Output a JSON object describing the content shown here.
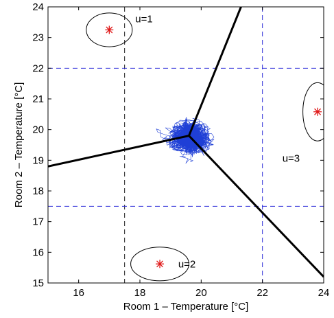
{
  "chart_data": {
    "type": "scatter",
    "title": "",
    "xlabel": "Room 1 – Temperature [°C]",
    "ylabel": "Room 2 – Temperature [°C]",
    "xlim": [
      15,
      24
    ],
    "ylim": [
      15,
      24
    ],
    "xticks": [
      16,
      18,
      20,
      22,
      24
    ],
    "yticks": [
      15,
      16,
      17,
      18,
      19,
      20,
      21,
      22,
      23,
      24
    ],
    "grid": false,
    "legend": "none",
    "centers": [
      {
        "label": "u=1",
        "x": 17.0,
        "y": 23.25,
        "rx": 0.75,
        "ry": 0.55
      },
      {
        "label": "u=2",
        "x": 18.65,
        "y": 15.62,
        "rx": 0.95,
        "ry": 0.55
      },
      {
        "label": "u=3",
        "x": 23.8,
        "y": 20.58,
        "rx": 0.48,
        "ry": 0.95
      }
    ],
    "region_labels": [
      {
        "text": "u=1",
        "x": 17.85,
        "y": 23.5
      },
      {
        "text": "u=2",
        "x": 19.25,
        "y": 15.5
      },
      {
        "text": "u=3",
        "x": 22.65,
        "y": 18.95
      }
    ],
    "boundaries": [
      {
        "name": "boundary-1-3",
        "points": [
          [
            19.6,
            19.8
          ],
          [
            21.3,
            24.0
          ]
        ]
      },
      {
        "name": "boundary-1-2",
        "points": [
          [
            19.6,
            19.8
          ],
          [
            15.0,
            18.8
          ]
        ]
      },
      {
        "name": "boundary-2-3",
        "points": [
          [
            19.6,
            19.8
          ],
          [
            24.0,
            15.2
          ]
        ]
      }
    ],
    "reference_lines": {
      "vertical": [
        17.5,
        22.0
      ],
      "horizontal": [
        17.5,
        22.0
      ]
    },
    "trajectory": {
      "center": [
        19.7,
        19.75
      ],
      "spread": [
        1.5,
        1.3
      ],
      "x_range": [
        17.9,
        21.5
      ],
      "y_range": [
        18.6,
        21.3
      ]
    },
    "colors": {
      "boundary": "#000000",
      "dashed_vertical": "#1a1a1a",
      "dashed_horizontal": "#2f2fd9",
      "dashed_right_vertical": "#2f2fd9",
      "trajectory": "#1f3fd6",
      "center_marker": "#e01919"
    }
  }
}
